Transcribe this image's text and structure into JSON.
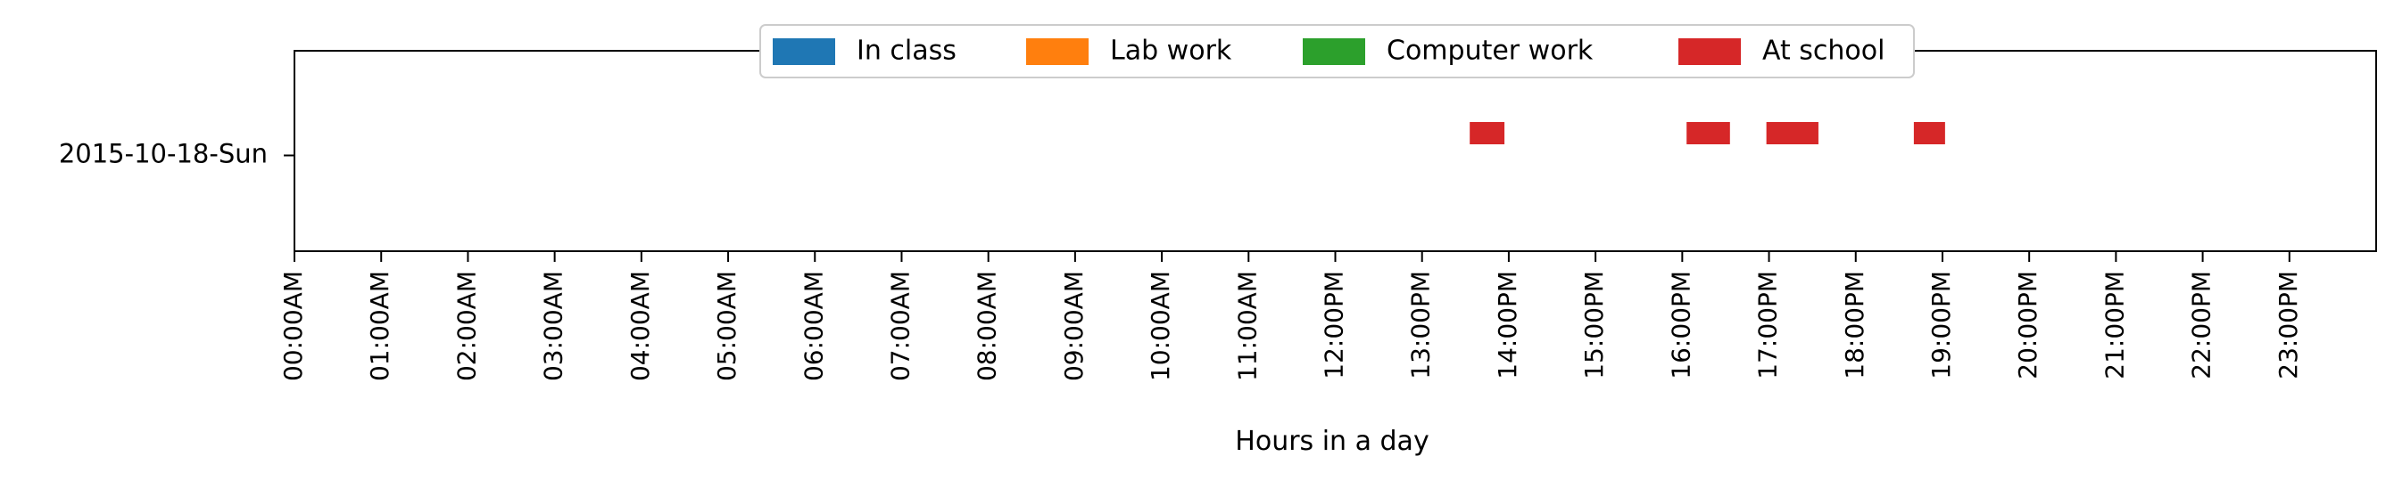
{
  "chart_data": {
    "type": "timeline",
    "title": "",
    "xlabel": "Hours in a day",
    "ylabel": "",
    "xlim": [
      0,
      24
    ],
    "grid": false,
    "legend_placement": "top-center",
    "categories": [
      "2015-10-18-Sun"
    ],
    "tick_labels": [
      "00:00AM",
      "01:00AM",
      "02:00AM",
      "03:00AM",
      "04:00AM",
      "05:00AM",
      "06:00AM",
      "07:00AM",
      "08:00AM",
      "09:00AM",
      "10:00AM",
      "11:00AM",
      "12:00PM",
      "13:00PM",
      "14:00PM",
      "15:00PM",
      "16:00PM",
      "17:00PM",
      "18:00PM",
      "19:00PM",
      "20:00PM",
      "21:00PM",
      "22:00PM",
      "23:00PM"
    ],
    "series": [
      {
        "name": "In class",
        "color": "#1f77b4",
        "intervals": []
      },
      {
        "name": "Lab work",
        "color": "#ff7f0e",
        "intervals": []
      },
      {
        "name": "Computer work",
        "color": "#2ca02c",
        "intervals": []
      },
      {
        "name": "At school",
        "color": "#d62728",
        "intervals": [
          {
            "day": "2015-10-18-Sun",
            "start": 13.55,
            "end": 13.95
          },
          {
            "day": "2015-10-18-Sun",
            "start": 16.05,
            "end": 16.55
          },
          {
            "day": "2015-10-18-Sun",
            "start": 16.97,
            "end": 17.57
          },
          {
            "day": "2015-10-18-Sun",
            "start": 18.67,
            "end": 19.03
          }
        ]
      }
    ]
  }
}
